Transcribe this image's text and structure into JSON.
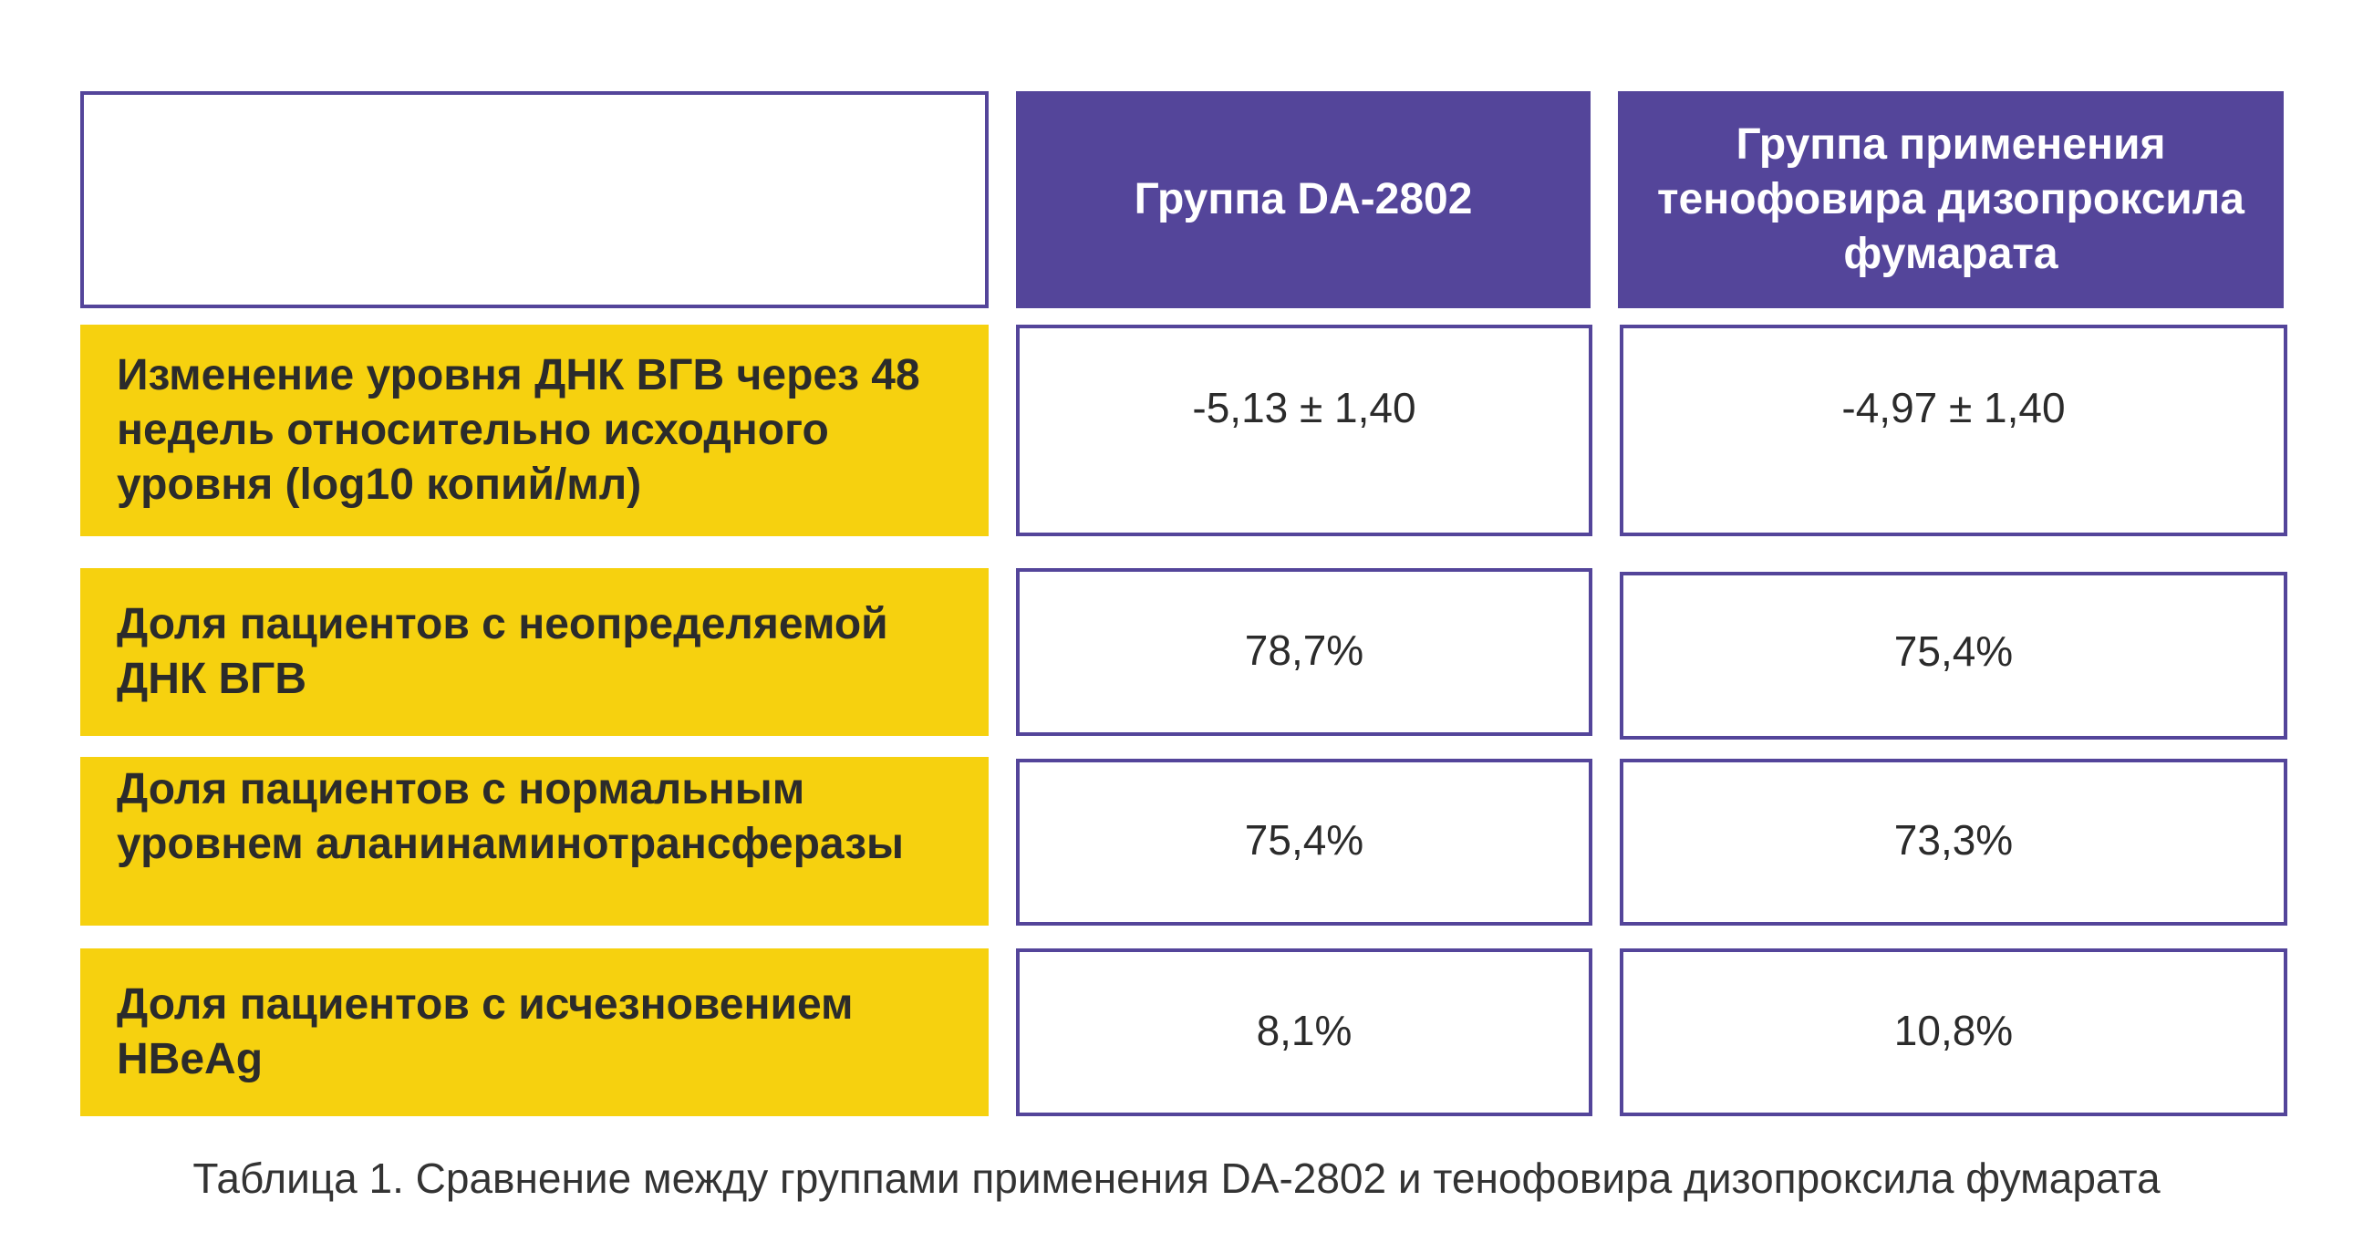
{
  "table": {
    "headers": {
      "col1": "",
      "col2": "Группа DA-2802",
      "col3": "Группа применения тенофовира дизопроксила фумарата"
    },
    "rows": [
      {
        "label": "Изменение уровня ДНК ВГВ через 48 недель относительно исходного уровня (log10 копий/мл)",
        "da2802": "-5,13 ± 1,40",
        "tdf": "-4,97 ± 1,40"
      },
      {
        "label": "Доля пациентов с неопределяемой ДНК ВГВ",
        "da2802": "78,7%",
        "tdf": "75,4%"
      },
      {
        "label": "Доля пациентов с нормальным уровнем аланинаминотрансферазы",
        "da2802": "75,4%",
        "tdf": "73,3%"
      },
      {
        "label": "Доля пациентов с исчезновением HBeAg",
        "da2802": "8,1%",
        "tdf": "10,8%"
      }
    ]
  },
  "caption": "Таблица 1. Сравнение между группами применения DA-2802 и тенофовира дизопроксила фумарата",
  "colors": {
    "header_bg": "#54459a",
    "label_bg": "#f6d10f",
    "border": "#54459a"
  }
}
